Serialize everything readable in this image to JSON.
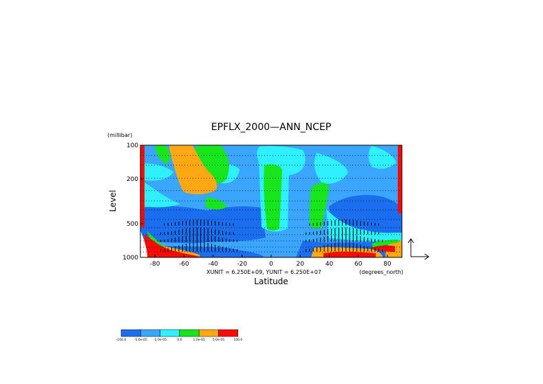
{
  "chart_data": {
    "type": "heatmap",
    "title": "EPFLX_2000—ANN_NCEP",
    "xlabel": "Latitude",
    "ylabel": "Level",
    "y_unit": "(millibar)",
    "x_unit": "(degrees_north)",
    "vector_units": "XUNIT = 6.250E+09, YUNIT = 6.250E+07",
    "xlim": [
      -90,
      90
    ],
    "ylim": [
      1000,
      100
    ],
    "y_scale": "log",
    "x_ticks": [
      "-80",
      "-60",
      "-40",
      "-20",
      "0",
      "20",
      "40",
      "60",
      "80"
    ],
    "y_ticks": [
      "100",
      "200",
      "500",
      "1000"
    ],
    "grid": "dotted",
    "levels": [
      "-100.0",
      "-5.0e-05",
      "-1.0e-05",
      "0.0",
      "1.0e-05",
      "5.0e-05",
      "100.0"
    ],
    "colors": [
      "#1c6ef0",
      "#3aa6ff",
      "#2ef0ff",
      "#18e61c",
      "#ffa814",
      "#ff0a00"
    ],
    "legend_placement": "bottom-left"
  }
}
